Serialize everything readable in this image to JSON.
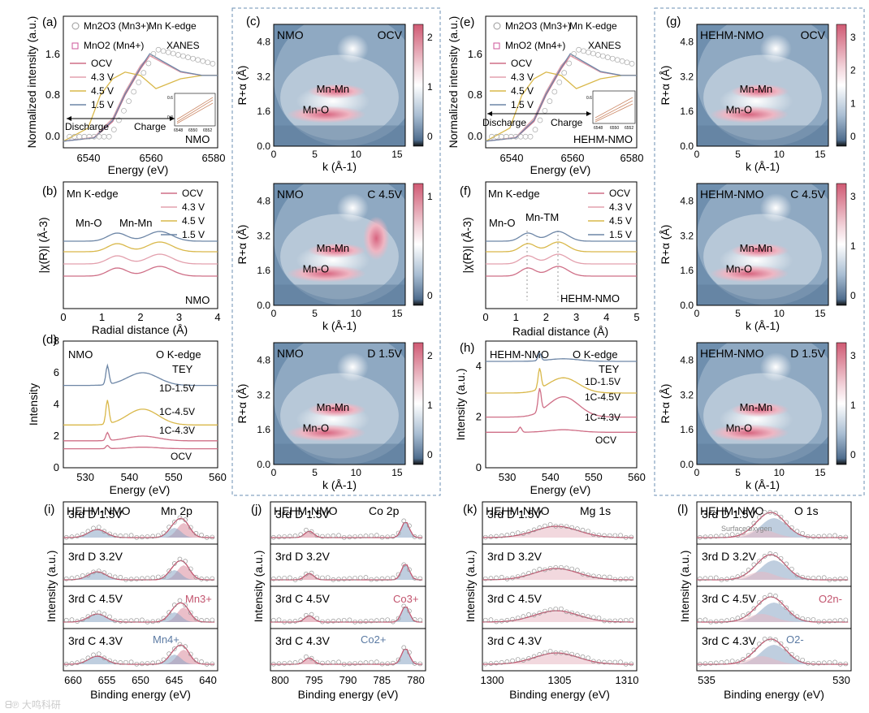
{
  "colors": {
    "ocv": "#cf6f87",
    "v43": "#e3a0ad",
    "v45": "#d9b84a",
    "v15": "#6d86a6",
    "red": "#c2546e",
    "blue": "#5b7aa3"
  },
  "figure": {
    "a": {
      "panel": "(a)",
      "xlabel": "Energy (eV)",
      "ylabel": "Normalized intensity (a.u.)",
      "xticks": [
        "6540",
        "6560",
        "6580"
      ],
      "yticks": [
        "0.0",
        "0.8",
        "1.6"
      ],
      "legend": [
        "Mn2O3 (Mn3+)",
        "MnO2 (Mn4+)",
        "OCV",
        "4.3 V",
        "4.5 V",
        "1.5 V"
      ],
      "title1": "Mn K-edge",
      "title2": "XANES",
      "sample": "NMO",
      "discharge": "Discharge",
      "charge": "Charge",
      "inset_ticks": [
        "6548",
        "6550",
        "6552"
      ],
      "inset_y": [
        "0.6",
        "0.3"
      ]
    },
    "b": {
      "panel": "(b)",
      "xlabel": "Radial distance (Å)",
      "ylabel": "|χ(R)| (Å-3)",
      "xticks": [
        "0",
        "1",
        "2",
        "3",
        "4"
      ],
      "title": "Mn K-edge",
      "peak1": "Mn-O",
      "peak2": "Mn-Mn",
      "legend": [
        "OCV",
        "4.3 V",
        "4.5 V",
        "1.5 V"
      ],
      "sample": "NMO"
    },
    "c": {
      "panel": "(c)",
      "maps": [
        {
          "label": "NMO",
          "state": "OCV",
          "cbar": [
            "2",
            "1",
            "0"
          ],
          "ann": [
            "Mn-Mn",
            "Mn-O"
          ]
        },
        {
          "label": "NMO",
          "state": "C 4.5V",
          "cbar": [
            "1",
            "0"
          ],
          "ann": [
            "Mn-Mn",
            "Mn-O"
          ]
        },
        {
          "label": "NMO",
          "state": "D 1.5V",
          "cbar": [
            "2",
            "1",
            "0"
          ],
          "ann": [
            "Mn-Mn",
            "Mn-O"
          ]
        }
      ],
      "xlabel": "k (Å-1)",
      "ylabel": "R+α (Å)",
      "xticks": [
        "0",
        "5",
        "10",
        "15"
      ],
      "yticks": [
        "0.0",
        "1.6",
        "3.2",
        "4.8"
      ]
    },
    "d": {
      "panel": "(d)",
      "xlabel": "Energy (eV)",
      "ylabel": "Intensity",
      "xticks": [
        "530",
        "540",
        "550",
        "560"
      ],
      "yticks": [
        "0",
        "2",
        "4",
        "6",
        "8"
      ],
      "sample": "NMO",
      "title1": "O K-edge",
      "title2": "TEY",
      "curves": [
        "1D-1.5V",
        "1C-4.5V",
        "1C-4.3V",
        "OCV"
      ]
    },
    "e": {
      "panel": "(e)",
      "xlabel": "Energy (eV)",
      "ylabel": "Normalized intensity (a.u.)",
      "xticks": [
        "6540",
        "6560",
        "6580"
      ],
      "yticks": [
        "0.0",
        "0.8",
        "1.6"
      ],
      "legend": [
        "Mn2O3 (Mn3+)",
        "MnO2 (Mn4+)",
        "OCV",
        "4.3 V",
        "4.5 V",
        "1.5 V"
      ],
      "title1": "Mn K-edge",
      "title2": "XANES",
      "sample": "HEHM-NMO",
      "discharge": "Discharge",
      "charge": "Charge",
      "inset_ticks": [
        "6548",
        "6550",
        "6552"
      ],
      "inset_y": [
        "0.6"
      ]
    },
    "f": {
      "panel": "(f)",
      "xlabel": "Radial distance (Å)",
      "ylabel": "|χ(R)| (Å-3)",
      "xticks": [
        "0",
        "1",
        "2",
        "3",
        "4",
        "5"
      ],
      "title": "Mn K-edge",
      "peak1": "Mn-O",
      "peak2": "Mn-TM",
      "legend": [
        "OCV",
        "4.3 V",
        "4.5 V",
        "1.5 V"
      ],
      "sample": "HEHM-NMO"
    },
    "g": {
      "panel": "(g)",
      "maps": [
        {
          "label": "HEHM-NMO",
          "state": "OCV",
          "cbar": [
            "3",
            "2",
            "1",
            "0"
          ],
          "ann": [
            "Mn-Mn",
            "Mn-O"
          ]
        },
        {
          "label": "HEHM-NMO",
          "state": "C 4.5V",
          "cbar": [
            "3",
            "1",
            "0"
          ],
          "ann": [
            "Mn-Mn",
            "Mn-O"
          ]
        },
        {
          "label": "HEHM-NMO",
          "state": "D 1.5V",
          "cbar": [
            "3",
            "1",
            "0"
          ],
          "ann": [
            "Mn-Mn",
            "Mn-O"
          ]
        }
      ],
      "xlabel": "k (Å-1)",
      "ylabel": "R+α (Å)",
      "xticks": [
        "0",
        "5",
        "10",
        "15"
      ],
      "yticks": [
        "0.0",
        "1.6",
        "3.2",
        "4.8"
      ]
    },
    "h": {
      "panel": "(h)",
      "xlabel": "Energy (eV)",
      "ylabel": "Intensity (a.u.)",
      "xticks": [
        "530",
        "540",
        "550",
        "560"
      ],
      "yticks": [
        "0",
        "2",
        "4"
      ],
      "sample": "HEHM-NMO",
      "title1": "O K-edge",
      "title2": "TEY",
      "curves": [
        "1D-1.5V",
        "1C-4.5V",
        "1C-4.3V",
        "OCV"
      ]
    },
    "i": {
      "panel": "(i)",
      "sample": "HEHM-NMO",
      "title": "Mn 2p",
      "xlabel": "Binding energy (eV)",
      "xticks": [
        "660",
        "655",
        "650",
        "645",
        "640"
      ],
      "rows": [
        "3rd D 1.5V",
        "3rd D 3.2V",
        "3rd C 4.5V",
        "3rd C 4.3V"
      ],
      "ann1": "Mn3+",
      "ann2": "Mn4+",
      "ylabel": "Intensity (a.u.)"
    },
    "j": {
      "panel": "(j)",
      "sample": "HEHM-NMO",
      "title": "Co 2p",
      "xlabel": "Binding energy (eV)",
      "xticks": [
        "800",
        "795",
        "790",
        "785",
        "780"
      ],
      "rows": [
        "3rd D 1.5V",
        "3rd D 3.2V",
        "3rd C 4.5V",
        "3rd C 4.3V"
      ],
      "ann1": "Co3+",
      "ann2": "Co2+",
      "ylabel": "Intensity (a.u.)"
    },
    "k": {
      "panel": "(k)",
      "sample": "HEHM-NMO",
      "title": "Mg 1s",
      "xlabel": "Binding energy (eV)",
      "xticks": [
        "1300",
        "1305",
        "1310"
      ],
      "rows": [
        "3rd D 1.5V",
        "3rd D 3.2V",
        "3rd C 4.5V",
        "3rd C 4.3V"
      ],
      "ylabel": "Intensity (a.u.)"
    },
    "l": {
      "panel": "(l)",
      "sample": "HEHM-NMO",
      "title": "O 1s",
      "xlabel": "Binding energy (eV)",
      "xticks": [
        "535",
        "530"
      ],
      "rows": [
        "3rd D 1.5V",
        "3rd D 3.2V",
        "3rd C 4.5V",
        "3rd C 4.3V"
      ],
      "ann0": "Surface oxygen",
      "ann1": "O2n-",
      "ann2": "O2-",
      "ylabel": "Intensity (a.u.)"
    }
  },
  "chart_data": [
    {
      "type": "line",
      "id": "a",
      "title": "Mn K-edge XANES NMO",
      "xlim": [
        6530,
        6580
      ],
      "ylim": [
        -0.1,
        1.9
      ],
      "series": [
        {
          "name": "OCV",
          "x": [
            6530,
            6540,
            6546,
            6550,
            6555,
            6558,
            6562,
            6568,
            6575,
            6580
          ],
          "y": [
            0.0,
            0.05,
            0.3,
            0.7,
            1.1,
            1.3,
            1.2,
            1.05,
            1.0,
            1.0
          ]
        },
        {
          "name": "4.3 V",
          "x": [
            6530,
            6540,
            6546,
            6550,
            6555,
            6558,
            6562,
            6568,
            6575,
            6580
          ],
          "y": [
            0.0,
            0.06,
            0.35,
            0.75,
            1.15,
            1.3,
            1.2,
            1.05,
            1.0,
            1.0
          ]
        },
        {
          "name": "4.5 V",
          "x": [
            6530,
            6538,
            6542,
            6546,
            6550,
            6555,
            6560,
            6568,
            6575,
            6580
          ],
          "y": [
            0.0,
            0.2,
            0.7,
            0.95,
            1.05,
            1.0,
            0.8,
            0.95,
            1.0,
            1.0
          ]
        },
        {
          "name": "1.5 V",
          "x": [
            6530,
            6540,
            6546,
            6550,
            6555,
            6558,
            6562,
            6568,
            6575,
            6580
          ],
          "y": [
            0.0,
            0.05,
            0.32,
            0.72,
            1.12,
            1.33,
            1.22,
            1.06,
            1.0,
            1.0
          ]
        }
      ]
    },
    {
      "type": "line",
      "id": "b",
      "xlim": [
        0,
        4
      ],
      "series": [
        {
          "name": "OCV"
        },
        {
          "name": "4.3 V"
        },
        {
          "name": "4.5 V"
        },
        {
          "name": "1.5 V"
        }
      ],
      "peaks": {
        "Mn-O": 1.4,
        "Mn-Mn": 2.5
      }
    },
    {
      "type": "heatmap",
      "id": "c",
      "xlim": [
        0,
        16
      ],
      "ylim": [
        0,
        5.6
      ],
      "maps": [
        "OCV",
        "C 4.5V",
        "D 1.5V"
      ]
    },
    {
      "type": "line",
      "id": "d",
      "xlim": [
        525,
        560
      ],
      "ylim": [
        0,
        8
      ]
    },
    {
      "type": "line",
      "id": "e",
      "xlim": [
        6530,
        6580
      ],
      "ylim": [
        -0.1,
        1.9
      ]
    },
    {
      "type": "line",
      "id": "f",
      "xlim": [
        0,
        5
      ],
      "peaks": {
        "Mn-O": 1.4,
        "Mn-TM": 2.4
      }
    },
    {
      "type": "heatmap",
      "id": "g",
      "xlim": [
        0,
        16
      ],
      "ylim": [
        0,
        5.6
      ],
      "maps": [
        "OCV",
        "C 4.5V",
        "D 1.5V"
      ]
    },
    {
      "type": "line",
      "id": "h",
      "xlim": [
        525,
        560
      ],
      "ylim": [
        0,
        5
      ]
    },
    {
      "type": "scatter",
      "id": "i",
      "xlim": [
        660,
        637
      ]
    },
    {
      "type": "scatter",
      "id": "j",
      "xlim": [
        805,
        775
      ]
    },
    {
      "type": "scatter",
      "id": "k",
      "xlim": [
        1298,
        1310
      ]
    },
    {
      "type": "scatter",
      "id": "l",
      "xlim": [
        538,
        527
      ]
    }
  ]
}
